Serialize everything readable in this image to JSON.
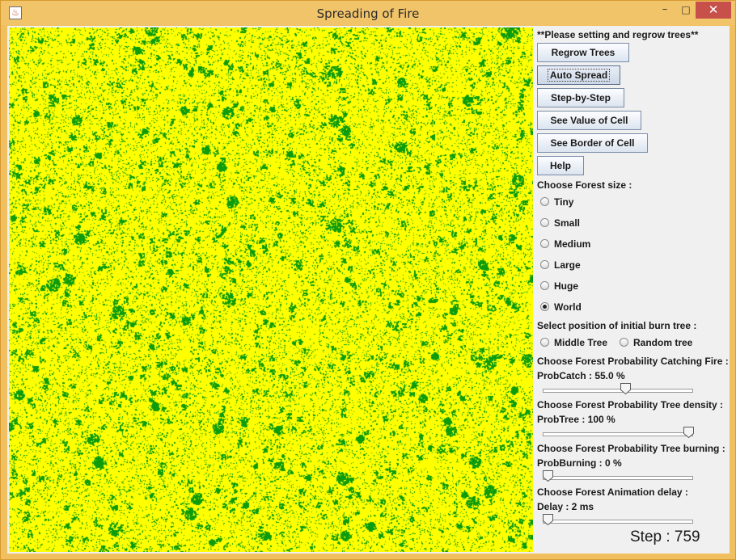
{
  "window": {
    "title": "Spreading of Fire",
    "minimize_symbol": "–",
    "maximize_symbol": "□",
    "close_symbol": "✕"
  },
  "colors": {
    "forest_background": "#ffff00",
    "tree": "#0d9c0d"
  },
  "panel": {
    "instruction": "**Please setting and regrow trees**",
    "buttons": {
      "regrow": "Regrow Trees",
      "auto_spread": "Auto Spread",
      "step_by_step": "Step-by-Step",
      "see_value": "See Value of Cell",
      "see_border": "See Border of Cell",
      "help": "Help"
    },
    "forest_size": {
      "label": "Choose Forest size :",
      "options": [
        "Tiny",
        "Small",
        "Medium",
        "Large",
        "Huge",
        "World"
      ],
      "selected": "World"
    },
    "initial_burn": {
      "label": "Select position of initial burn tree :",
      "options": [
        "Middle Tree",
        "Random tree"
      ],
      "selected": ""
    },
    "prob_catch": {
      "label": "Choose Forest Probability Catching Fire :",
      "value_text": "ProbCatch : 55.0 %",
      "fraction": 0.55
    },
    "prob_tree": {
      "label": "Choose Forest Probability Tree density :",
      "value_text": "ProbTree : 100 %",
      "fraction": 1.0
    },
    "prob_burning": {
      "label": "Choose Forest Probability Tree burning :",
      "value_text": "ProbBurning : 0 %",
      "fraction": 0.0
    },
    "delay": {
      "label": "Choose Forest Animation delay :",
      "value_text": "Delay : 2 ms",
      "fraction": 0.0
    }
  },
  "status": {
    "step_text": "Step : 759"
  }
}
